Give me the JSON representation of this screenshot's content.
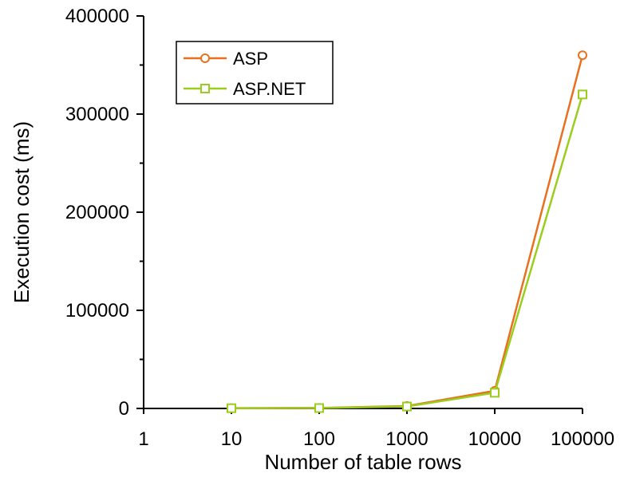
{
  "chart_data": {
    "type": "line",
    "x_scale": "log",
    "xlabel": "Number of table rows",
    "ylabel": "Execution cost (ms)",
    "xlim": [
      1,
      100000
    ],
    "ylim": [
      0,
      400000
    ],
    "x_ticks": [
      "1",
      "10",
      "100",
      "1000",
      "10000",
      "100000"
    ],
    "y_ticks": [
      "0",
      "100000",
      "200000",
      "300000",
      "400000"
    ],
    "grid": false,
    "legend_position": "top-left",
    "x": [
      10,
      100,
      1000,
      10000,
      100000
    ],
    "series": [
      {
        "name": "ASP",
        "color": "#E8701E",
        "marker": "circle",
        "values": [
          300,
          500,
          2500,
          18000,
          360000
        ]
      },
      {
        "name": "ASP.NET",
        "color": "#9ACD1E",
        "marker": "square",
        "values": [
          250,
          400,
          2000,
          16000,
          320000
        ]
      }
    ]
  }
}
